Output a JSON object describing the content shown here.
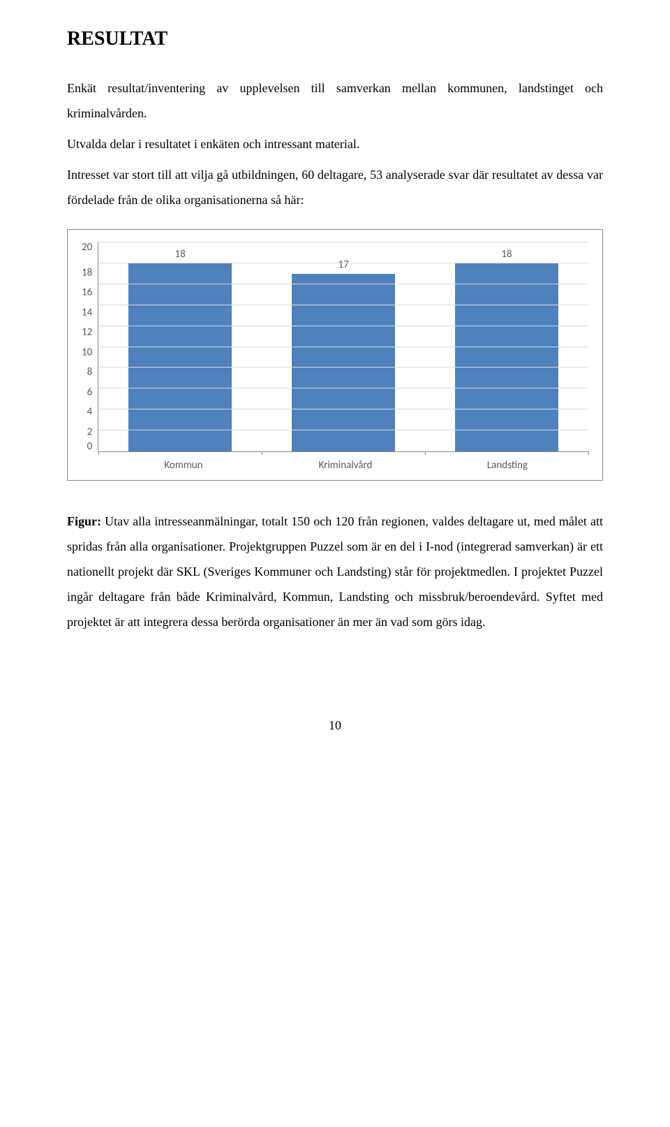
{
  "heading": "RESULTAT",
  "intro_p1": "Enkät resultat/inventering av upplevelsen till samverkan mellan kommunen, landstinget och kriminalvården.",
  "intro_p2": "Utvalda delar i resultatet i enkäten och intressant material.",
  "intro_p3": "Intresset var stort till att vilja gå utbildningen, 60 deltagare, 53 analyserade svar där resultatet av dessa var fördelade från de olika organisationerna så här:",
  "chart": {
    "type": "bar",
    "categories": [
      "Kommun",
      "Kriminalvård",
      "Landsting"
    ],
    "values": [
      18,
      17,
      18
    ],
    "bar_color": "#4f81bd",
    "ylim": [
      0,
      20
    ],
    "ytick_step": 2,
    "yticks": [
      20,
      18,
      16,
      14,
      12,
      10,
      8,
      6,
      4,
      2,
      0
    ],
    "grid_color": "#d9d9d9",
    "axis_color": "#888888",
    "background_color": "#ffffff",
    "label_color": "#595959",
    "label_fontsize": 15,
    "bar_width": 0.7
  },
  "figure_label": "Figur:",
  "figure_text": " Utav alla intresseanmälningar, totalt 150 och 120 från regionen, valdes deltagare ut, med målet att spridas från alla organisationer. Projektgruppen Puzzel som är en del i I-nod (integrerad samverkan) är ett nationellt projekt där SKL (Sveriges Kommuner och Landsting) står för projektmedlen. I projektet Puzzel ingår deltagare från både Kriminalvård, Kommun, Landsting och missbruk/beroendevård. Syftet med projektet är att integrera dessa berörda organisationer än mer än vad som görs idag.",
  "page_number": "10"
}
